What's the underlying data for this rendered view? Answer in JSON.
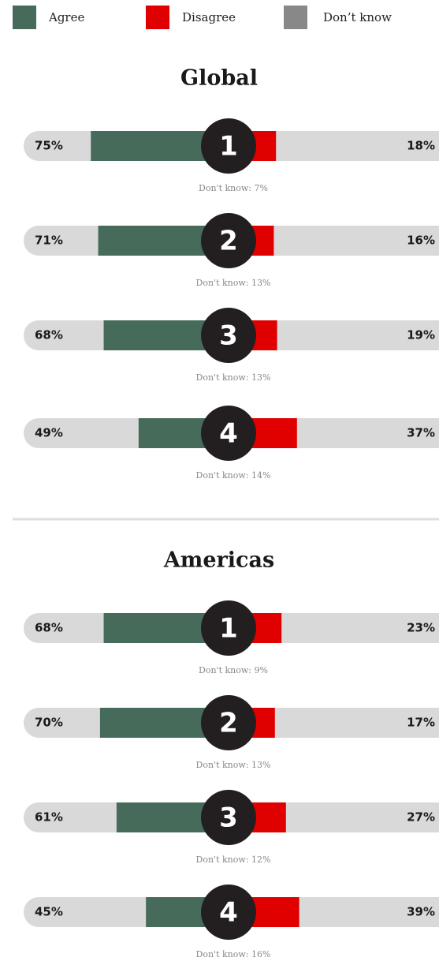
{
  "chart_data": [
    {
      "type": "diverging_bar",
      "title": "Global",
      "categories": [
        "1",
        "2",
        "3",
        "4"
      ],
      "series": [
        {
          "name": "Agree",
          "color": "#476b5a",
          "values": [
            75,
            71,
            68,
            49
          ],
          "value_labels": [
            "75%",
            "71%",
            "68%",
            "49%"
          ]
        },
        {
          "name": "Disagree",
          "color": "#e10000",
          "values": [
            18,
            16,
            19,
            37
          ],
          "value_labels": [
            "18%",
            "16%",
            "19%",
            "37%"
          ]
        },
        {
          "name": "Don’t know",
          "color": "#888888",
          "values": [
            7,
            13,
            13,
            14
          ],
          "value_labels": [
            "Don't know: 7%",
            "Don't know: 13%",
            "Don't know: 13%",
            "Don't know: 14%"
          ]
        }
      ]
    },
    {
      "type": "diverging_bar",
      "title": "Americas",
      "categories": [
        "1",
        "2",
        "3",
        "4"
      ],
      "series": [
        {
          "name": "Agree",
          "color": "#476b5a",
          "values": [
            68,
            70,
            61,
            45
          ],
          "value_labels": [
            "68%",
            "70%",
            "61%",
            "45%"
          ]
        },
        {
          "name": "Disagree",
          "color": "#e10000",
          "values": [
            23,
            17,
            27,
            39
          ],
          "value_labels": [
            "23%",
            "17%",
            "27%",
            "39%"
          ]
        },
        {
          "name": "Don’t know",
          "color": "#888888",
          "values": [
            9,
            13,
            12,
            16
          ],
          "value_labels": [
            "Don't know: 9%",
            "Don't know: 13%",
            "Don't know: 12%",
            "Don't know: 16%"
          ]
        }
      ]
    }
  ]
}
